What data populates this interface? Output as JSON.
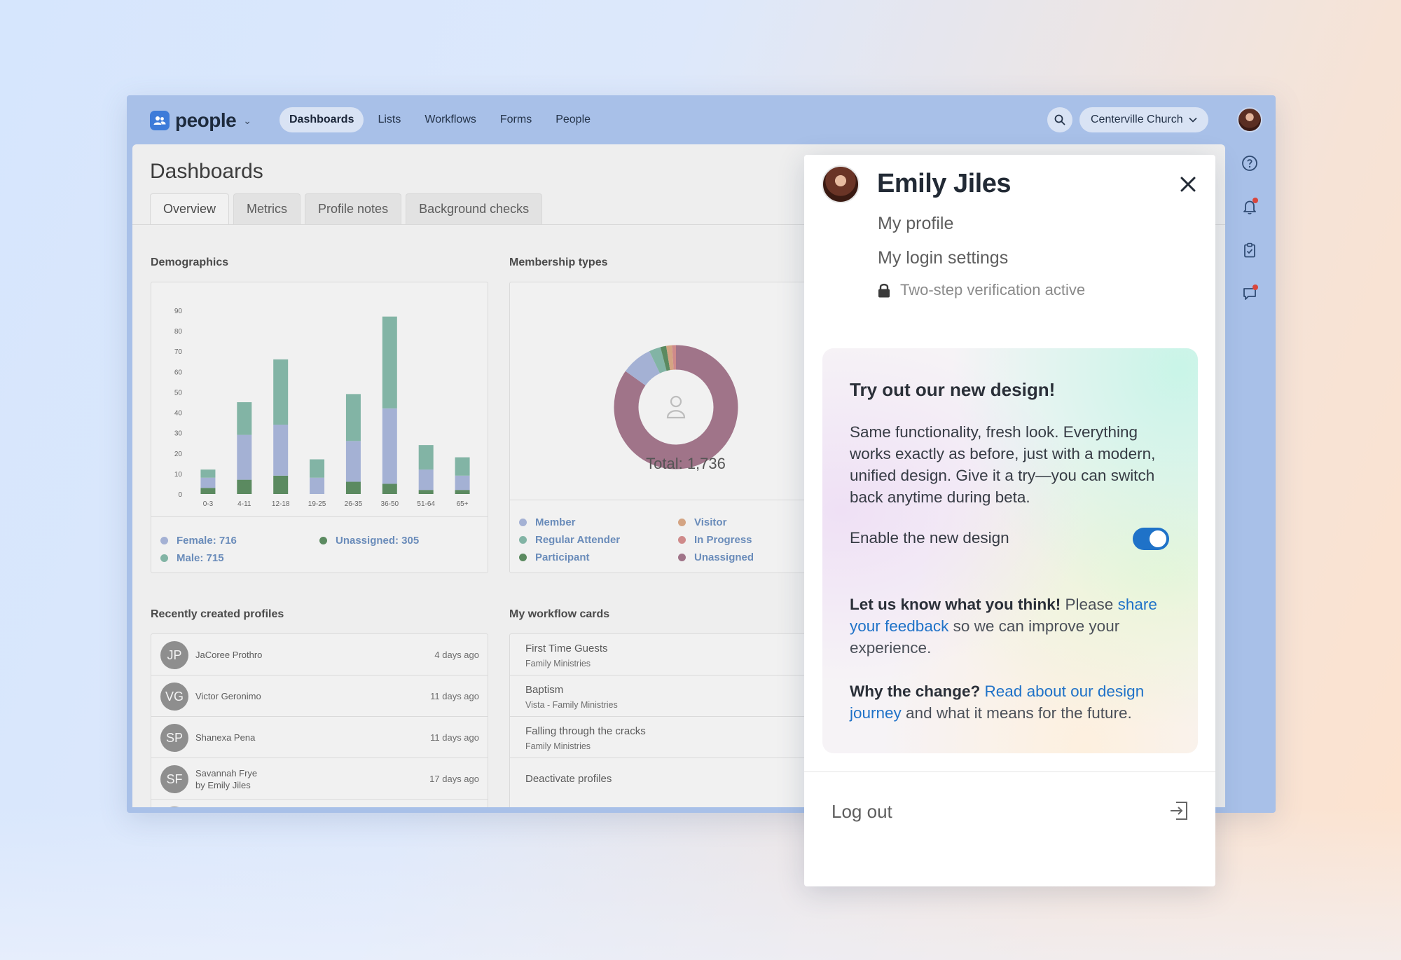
{
  "app": {
    "logo_text": "people",
    "nav": [
      {
        "label": "Dashboards",
        "active": true
      },
      {
        "label": "Lists",
        "active": false
      },
      {
        "label": "Workflows",
        "active": false
      },
      {
        "label": "Forms",
        "active": false
      },
      {
        "label": "People",
        "active": false
      }
    ],
    "org_name": "Centerville Church",
    "rail_icons": [
      "help-icon",
      "bell-icon",
      "clipboard-check-icon",
      "chat-icon"
    ]
  },
  "page": {
    "title": "Dashboards",
    "tabs": [
      "Overview",
      "Metrics",
      "Profile notes",
      "Background checks"
    ],
    "active_tab": "Overview"
  },
  "demographics": {
    "title": "Demographics",
    "legend": [
      "Female: 716",
      "Male: 715",
      "Unassigned: 305"
    ]
  },
  "membership": {
    "title": "Membership types",
    "total_label": "Total: 1,736",
    "legend": [
      "Member",
      "Regular Attender",
      "Participant",
      "Visitor",
      "In Progress",
      "Unassigned"
    ]
  },
  "recent_profiles": {
    "title": "Recently created profiles",
    "rows": [
      {
        "initials": "JP",
        "name": "JaCoree Prothro",
        "sub": "",
        "time": "4 days ago"
      },
      {
        "initials": "VG",
        "name": "Victor Geronimo",
        "sub": "",
        "time": "11 days ago"
      },
      {
        "initials": "SP",
        "name": "Shanexa Pena",
        "sub": "",
        "time": "11 days ago"
      },
      {
        "initials": "SF",
        "name": "Savannah Frye",
        "sub": "by Emily Jiles",
        "time": "17 days ago"
      }
    ]
  },
  "workflow_cards": {
    "title": "My workflow cards",
    "rows": [
      {
        "title": "First Time Guests",
        "sub": "Family Ministries"
      },
      {
        "title": "Baptism",
        "sub": "Vista - Family Ministries"
      },
      {
        "title": "Falling through the cracks",
        "sub": "Family Ministries"
      },
      {
        "title": "Deactivate profiles",
        "sub": ""
      }
    ]
  },
  "chart_data": [
    {
      "type": "bar",
      "title": "Demographics",
      "categories": [
        "0-3",
        "4-11",
        "12-18",
        "19-25",
        "26-35",
        "36-50",
        "51-64",
        "65+"
      ],
      "series": [
        {
          "name": "Unassigned",
          "color": "#5b8a60",
          "values": [
            3,
            7,
            9,
            0,
            6,
            5,
            2,
            2
          ]
        },
        {
          "name": "Female",
          "color": "#a4b1d4",
          "values": [
            5,
            22,
            25,
            8,
            20,
            37,
            10,
            7
          ]
        },
        {
          "name": "Male",
          "color": "#82b4a5",
          "values": [
            4,
            16,
            32,
            9,
            23,
            45,
            12,
            9
          ]
        }
      ],
      "yticks": [
        0,
        10,
        20,
        30,
        40,
        50,
        60,
        70,
        80,
        90
      ],
      "ylim": [
        0,
        90
      ],
      "stacked": true
    },
    {
      "type": "pie",
      "title": "Membership types",
      "total": 1736,
      "slices": [
        {
          "label": "Unassigned",
          "color": "#a07489",
          "value": 84
        },
        {
          "label": "Member",
          "color": "#a4b1d4",
          "value": 8
        },
        {
          "label": "Regular Attender",
          "color": "#82b4a5",
          "value": 3
        },
        {
          "label": "Participant",
          "color": "#5b8a60",
          "value": 1.5
        },
        {
          "label": "Visitor",
          "color": "#d4a483",
          "value": 1.5
        },
        {
          "label": "In Progress",
          "color": "#cf8a8a",
          "value": 1
        }
      ]
    }
  ],
  "popover": {
    "name": "Emily Jiles",
    "my_profile": "My profile",
    "login_settings": "My login settings",
    "two_step": "Two-step verification active",
    "promo": {
      "title": "Try out our new design!",
      "body": "Same functionality, fresh look. Everything works exactly as before, just with a modern, unified design. Give it a try—you can switch back anytime during beta.",
      "toggle_label": "Enable the new design",
      "toggle_on": true,
      "feedback_lead": "Let us know what you think!",
      "feedback_pre": " Please ",
      "feedback_link": "share your feedback",
      "feedback_post": " so we can improve your experience.",
      "why_lead": "Why the change?",
      "why_link": "Read about our design journey",
      "why_post": " and what it means for the future."
    },
    "logout": "Log out"
  }
}
